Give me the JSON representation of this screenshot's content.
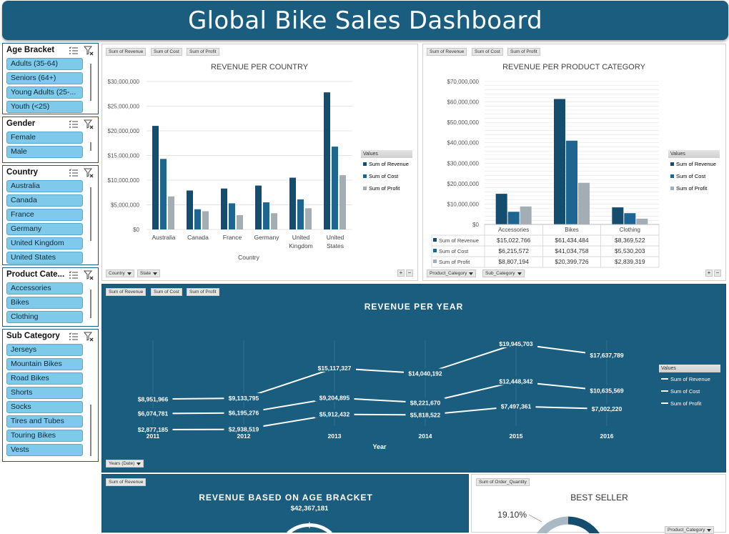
{
  "dashboard_title": "Global Bike Sales Dashboard",
  "colors": {
    "revenue": "#154d6e",
    "cost": "#1f6591",
    "profit": "#a5adb4",
    "brand_blue": "#1b5d7f",
    "slicer_item": "#7fc9ea"
  },
  "slicers": [
    {
      "title": "Age Bracket",
      "items": [
        "Adults (35-64)",
        "Seniors (64+)",
        "Young Adults (25-...",
        "Youth (<25)"
      ]
    },
    {
      "title": "Gender",
      "items": [
        "Female",
        "Male"
      ]
    },
    {
      "title": "Country",
      "items": [
        "Australia",
        "Canada",
        "France",
        "Germany",
        "United Kingdom",
        "United States"
      ]
    },
    {
      "title": "Product Cate...",
      "items": [
        "Accessories",
        "Bikes",
        "Clothing"
      ]
    },
    {
      "title": "Sub Category",
      "items": [
        "Jerseys",
        "Mountain Bikes",
        "Road Bikes",
        "Shorts",
        "Socks",
        "Tires and Tubes",
        "Touring Bikes",
        "Vests"
      ]
    }
  ],
  "field_buttons": {
    "revenue": "Sum of Revenue",
    "cost": "Sum of Cost",
    "profit": "Sum of Profit",
    "order_qty": "Sum of Order_Quantity"
  },
  "filters": {
    "country": "Country",
    "state": "State",
    "product_category": "Product_Category",
    "sub_category": "Sub_Category",
    "years": "Years (Date)",
    "product_category_short": "Product_Category"
  },
  "legend": {
    "title": "Values",
    "revenue": "Sum of Revenue",
    "cost": "Sum of Cost",
    "profit": "Sum of Profit"
  },
  "chart_data": [
    {
      "type": "bar",
      "title": "REVENUE PER COUNTRY",
      "xlabel": "Country",
      "ylabel": "",
      "categories": [
        "Australia",
        "Canada",
        "France",
        "Germany",
        "United Kingdom",
        "United States"
      ],
      "series": [
        {
          "name": "Sum of Revenue",
          "values": [
            21000000,
            7900000,
            8300000,
            8900000,
            10500000,
            27800000
          ]
        },
        {
          "name": "Sum of Cost",
          "values": [
            14300000,
            4100000,
            5300000,
            5500000,
            6100000,
            16800000
          ]
        },
        {
          "name": "Sum of Profit",
          "values": [
            6700000,
            3700000,
            2900000,
            3300000,
            4300000,
            11000000
          ]
        }
      ],
      "ylim": [
        0,
        30000000
      ],
      "yticks": [
        "$0",
        "$5,000,000",
        "$10,000,000",
        "$15,000,000",
        "$20,000,000",
        "$25,000,000",
        "$30,000,000"
      ],
      "legend": "right"
    },
    {
      "type": "bar",
      "title": "REVENUE PER PRODUCT CATEGORY",
      "categories": [
        "Accessories",
        "Bikes",
        "Clothing"
      ],
      "series": [
        {
          "name": "Sum of Revenue",
          "values": [
            15022766,
            61434484,
            8369522
          ],
          "labels": [
            "$15,022,766",
            "$61,434,484",
            "$8,369,522"
          ]
        },
        {
          "name": "Sum of Cost",
          "values": [
            6215572,
            41034758,
            5530203
          ],
          "labels": [
            "$6,215,572",
            "$41,034,758",
            "$5,530,203"
          ]
        },
        {
          "name": "Sum of Profit",
          "values": [
            8807194,
            20399726,
            2839319
          ],
          "labels": [
            "$8,807,194",
            "$20,399,726",
            "$2,839,319"
          ]
        }
      ],
      "ylim": [
        0,
        70000000
      ],
      "yticks": [
        "$0",
        "$10,000,000",
        "$20,000,000",
        "$30,000,000",
        "$40,000,000",
        "$50,000,000",
        "$60,000,000",
        "$70,000,000"
      ],
      "legend": "right"
    },
    {
      "type": "line",
      "title": "REVENUE PER YEAR",
      "xlabel": "Year",
      "x": [
        "2011",
        "2012",
        "2013",
        "2014",
        "2015",
        "2016"
      ],
      "series": [
        {
          "name": "Sum of Revenue",
          "values": [
            8951966,
            9133795,
            15117327,
            14040192,
            19945703,
            17637789
          ],
          "labels": [
            "$8,951,966",
            "$9,133,795",
            "$15,117,327",
            "$14,040,192",
            "$19,945,703",
            "$17,637,789"
          ]
        },
        {
          "name": "Sum of Cost",
          "values": [
            6074781,
            6195276,
            9204895,
            8221670,
            12448342,
            10635569
          ],
          "labels": [
            "$6,074,781",
            "$6,195,276",
            "$9,204,895",
            "$8,221,670",
            "$12,448,342",
            "$10,635,569"
          ]
        },
        {
          "name": "Sum of Profit",
          "values": [
            2877185,
            2938519,
            5912432,
            5818522,
            7497361,
            7002220
          ],
          "labels": [
            "$2,877,185",
            "$2,938,519",
            "$5,912,432",
            "$5,818,522",
            "$7,497,361",
            "$7,002,220"
          ]
        }
      ],
      "legend": "right"
    },
    {
      "type": "pie",
      "title": "REVENUE BASED ON AGE BRACKET",
      "labels": [
        "$42,367,181"
      ],
      "values": [
        42367181
      ]
    },
    {
      "type": "pie",
      "title": "BEST SELLER",
      "labels": [
        "19.10%"
      ],
      "values": [
        19.1
      ]
    }
  ]
}
